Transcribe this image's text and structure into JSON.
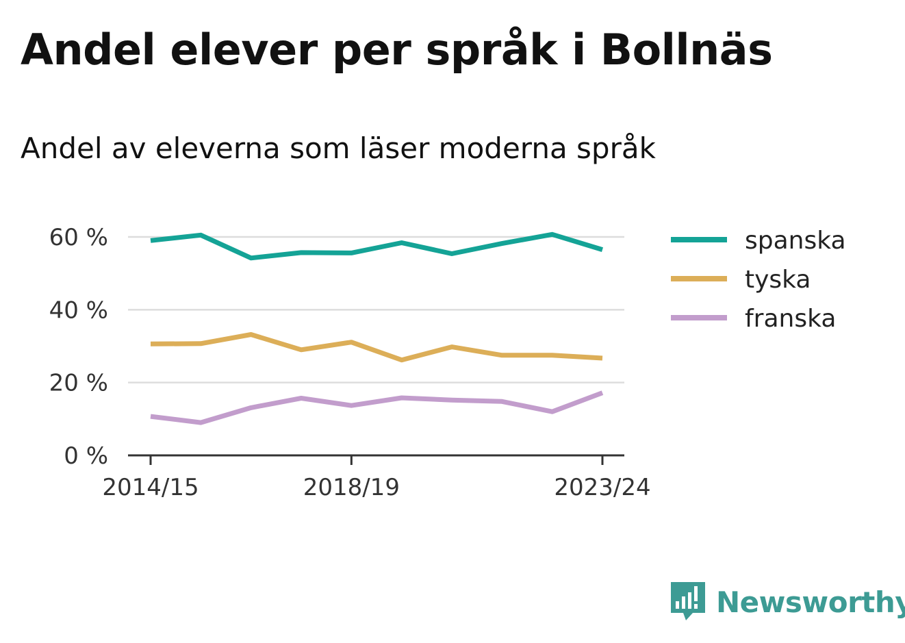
{
  "title": "Andel elever per språk i Bollnäs",
  "subtitle": "Andel av eleverna som läser moderna språk",
  "brand": {
    "name": "Newsworthy",
    "logo_icon": "bar-chart-bubble-icon",
    "color": "#3d9b94"
  },
  "chart_data": {
    "type": "line",
    "x": [
      "2014/15",
      "2015/16",
      "2016/17",
      "2017/18",
      "2018/19",
      "2019/20",
      "2020/21",
      "2021/22",
      "2022/23",
      "2023/24"
    ],
    "x_tick_labels": [
      "2014/15",
      "2018/19",
      "2023/24"
    ],
    "y_ticks": [
      0,
      20,
      40,
      60
    ],
    "y_tick_labels": [
      "0 %",
      "20 %",
      "40 %",
      "60 %"
    ],
    "ylim": [
      0,
      60
    ],
    "grid": true,
    "legend_position": "right",
    "series": [
      {
        "name": "spanska",
        "color": "#14a396",
        "values": [
          59.0,
          60.5,
          54.2,
          55.7,
          55.6,
          58.4,
          55.4,
          58.2,
          60.7,
          56.5
        ]
      },
      {
        "name": "tyska",
        "color": "#dcae58",
        "values": [
          30.6,
          30.7,
          33.2,
          29.0,
          31.1,
          26.2,
          29.8,
          27.5,
          27.5,
          26.7
        ]
      },
      {
        "name": "franska",
        "color": "#c29dcc",
        "values": [
          10.7,
          9.0,
          13.1,
          15.7,
          13.7,
          15.8,
          15.2,
          14.8,
          12.0,
          17.2
        ]
      }
    ]
  }
}
